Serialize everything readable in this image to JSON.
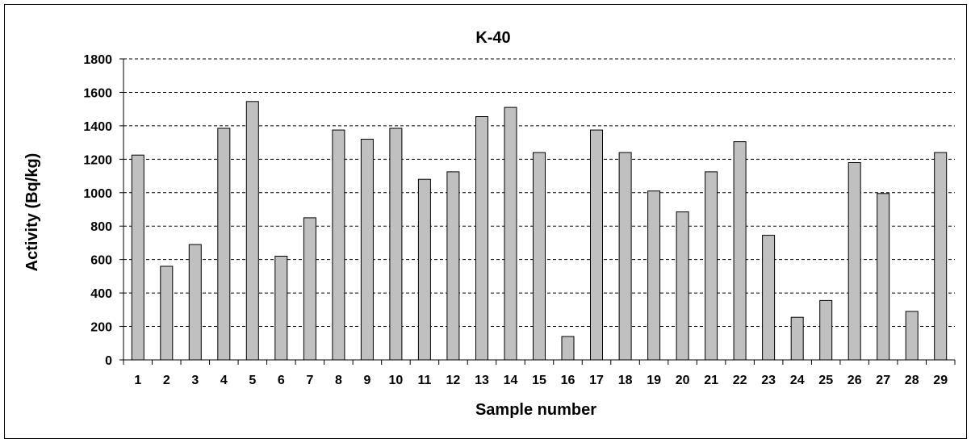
{
  "chart_data": {
    "type": "bar",
    "title": "K-40",
    "xlabel": "Sample number",
    "ylabel": "Activity (Bq/kg)",
    "ylim": [
      0,
      1800
    ],
    "yticks": [
      0,
      200,
      400,
      600,
      800,
      1000,
      1200,
      1400,
      1600,
      1800
    ],
    "grid": true,
    "legend": "none",
    "bar_color": "#c0c0c0",
    "categories": [
      "1",
      "2",
      "3",
      "4",
      "5",
      "6",
      "7",
      "8",
      "9",
      "10",
      "11",
      "12",
      "13",
      "14",
      "15",
      "16",
      "17",
      "18",
      "19",
      "20",
      "21",
      "22",
      "23",
      "24",
      "25",
      "26",
      "27",
      "28",
      "29"
    ],
    "values": [
      1225,
      560,
      690,
      1385,
      1545,
      620,
      850,
      1375,
      1320,
      1385,
      1080,
      1125,
      1455,
      1510,
      1240,
      140,
      1375,
      1240,
      1010,
      885,
      1125,
      1305,
      745,
      255,
      355,
      1180,
      995,
      290,
      1240
    ]
  }
}
